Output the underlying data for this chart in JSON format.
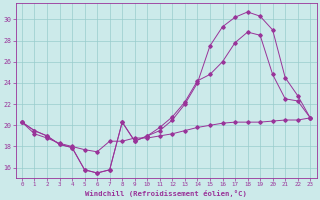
{
  "xlabel": "Windchill (Refroidissement éolien,°C)",
  "background_color": "#cceaea",
  "line_color": "#993399",
  "grid_color": "#99cccc",
  "xlim": [
    -0.5,
    23.5
  ],
  "ylim": [
    15.0,
    31.5
  ],
  "yticks": [
    16,
    18,
    20,
    22,
    24,
    26,
    28,
    30
  ],
  "xticks": [
    0,
    1,
    2,
    3,
    4,
    5,
    6,
    7,
    8,
    9,
    10,
    11,
    12,
    13,
    14,
    15,
    16,
    17,
    18,
    19,
    20,
    21,
    22,
    23
  ],
  "line1_x": [
    0,
    1,
    2,
    3,
    4,
    5,
    6,
    7,
    8,
    9,
    10,
    11,
    12,
    13,
    14,
    15,
    16,
    17,
    18,
    19,
    20,
    21,
    22,
    23
  ],
  "line1_y": [
    20.3,
    19.5,
    19.0,
    18.2,
    17.9,
    15.8,
    15.5,
    15.8,
    20.3,
    18.5,
    19.0,
    19.8,
    20.8,
    22.2,
    24.2,
    24.8,
    26.0,
    27.8,
    28.8,
    28.5,
    24.8,
    22.5,
    22.3,
    20.7
  ],
  "line2_x": [
    0,
    1,
    2,
    3,
    4,
    5,
    6,
    7,
    8,
    9,
    10,
    11,
    12,
    13,
    14,
    15,
    16,
    17,
    18,
    19,
    20,
    21,
    22,
    23
  ],
  "line2_y": [
    20.3,
    19.5,
    19.0,
    18.2,
    17.9,
    15.8,
    15.5,
    15.8,
    20.3,
    18.5,
    19.0,
    19.5,
    20.5,
    22.0,
    24.0,
    27.5,
    29.3,
    30.2,
    30.7,
    30.3,
    29.0,
    24.5,
    22.8,
    20.7
  ],
  "line3_x": [
    0,
    1,
    2,
    3,
    4,
    5,
    6,
    7,
    8,
    9,
    10,
    11,
    12,
    13,
    14,
    15,
    16,
    17,
    18,
    19,
    20,
    21,
    22,
    23
  ],
  "line3_y": [
    20.3,
    19.2,
    18.8,
    18.3,
    18.0,
    17.7,
    17.5,
    18.5,
    18.5,
    18.8,
    18.8,
    19.0,
    19.2,
    19.5,
    19.8,
    20.0,
    20.2,
    20.3,
    20.3,
    20.3,
    20.4,
    20.5,
    20.5,
    20.7
  ]
}
